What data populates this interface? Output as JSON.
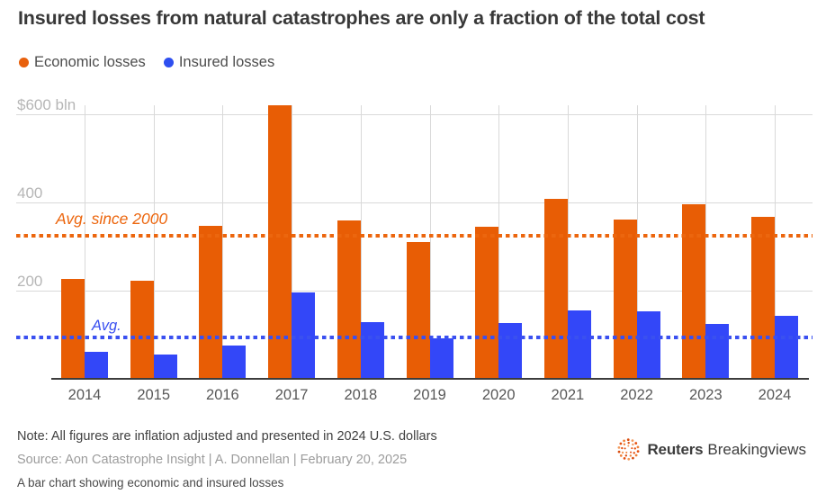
{
  "title": "Insured losses from natural catastrophes are only a fraction of the total cost",
  "legend": [
    {
      "label": "Economic losses",
      "color": "#e8600c"
    },
    {
      "label": "Insured losses",
      "color": "#2e4ff0"
    }
  ],
  "chart_data": {
    "type": "bar",
    "title": "Insured losses from natural catastrophes are only a fraction of the total cost",
    "categories": [
      "2014",
      "2015",
      "2016",
      "2017",
      "2018",
      "2019",
      "2020",
      "2021",
      "2022",
      "2023",
      "2024"
    ],
    "series": [
      {
        "name": "Economic losses",
        "color": "#e85d05",
        "values": [
          226,
          222,
          347,
          620,
          360,
          310,
          345,
          409,
          362,
          396,
          368
        ]
      },
      {
        "name": "Insured losses",
        "color": "#3347f8",
        "values": [
          61,
          55,
          76,
          195,
          128,
          92,
          126,
          155,
          153,
          125,
          143
        ]
      }
    ],
    "unit": "$ bln",
    "yticks": [
      {
        "value": 600,
        "label": "$600 bln"
      },
      {
        "value": 400,
        "label": "400"
      },
      {
        "value": 200,
        "label": "200"
      }
    ],
    "ylim": [
      0,
      630
    ],
    "grid": true,
    "legend_position": "top-left",
    "reference_lines": [
      {
        "label": "Avg. since 2000",
        "value": 324,
        "color": "#ec660e",
        "series": "Economic losses"
      },
      {
        "label": "Avg.",
        "value": 94,
        "color": "#3a50f0",
        "series": "Insured losses"
      }
    ]
  },
  "footer": {
    "note": "Note: All figures are inflation adjusted and presented in 2024 U.S. dollars",
    "source": "Source: Aon Catastrophe Insight | A. Donnellan | February 20, 2025",
    "caption": "A bar chart showing economic and insured losses",
    "logo": {
      "brand": "Reuters",
      "suffix": "Breakingviews",
      "icon_color": "#e6500f"
    }
  }
}
